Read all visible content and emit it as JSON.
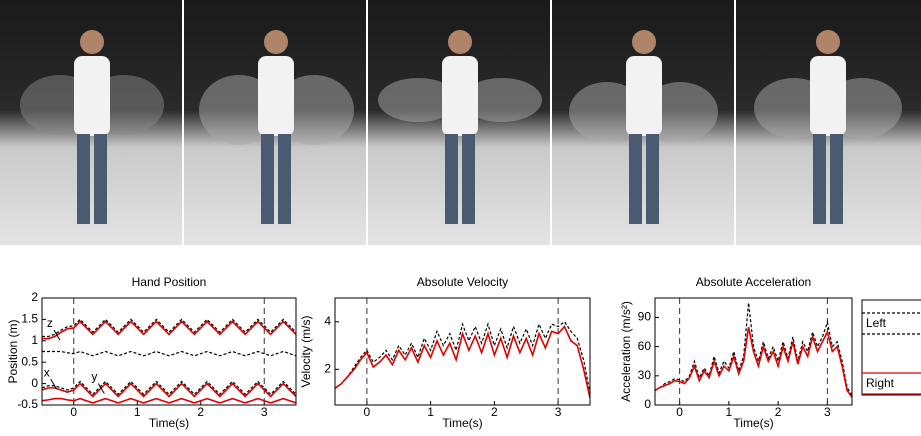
{
  "chart_data": [
    {
      "type": "line",
      "title": "Hand Position",
      "xlabel": "Time(s)",
      "ylabel": "Position (m)",
      "x": [
        -0.5,
        -0.4,
        -0.3,
        -0.2,
        -0.1,
        0,
        0.1,
        0.2,
        0.3,
        0.4,
        0.5,
        0.6,
        0.7,
        0.8,
        0.9,
        1,
        1.1,
        1.2,
        1.3,
        1.4,
        1.5,
        1.6,
        1.7,
        1.8,
        1.9,
        2,
        2.1,
        2.2,
        2.3,
        2.4,
        2.5,
        2.6,
        2.7,
        2.8,
        2.9,
        3,
        3.1,
        3.2,
        3.3,
        3.4,
        3.5
      ],
      "xlim": [
        -0.5,
        3.5
      ],
      "ylim": [
        -0.5,
        2
      ],
      "xticks": [
        0,
        1,
        2,
        3
      ],
      "yticks": [
        -0.5,
        0,
        0.5,
        1,
        1.5,
        2
      ],
      "vlines": [
        0,
        3
      ],
      "series": [
        {
          "name": "Left",
          "color": "#000000",
          "linestyle": "dashed",
          "values": [
            1.1,
            1.1,
            1.15,
            1.25,
            1.33,
            1.35,
            1.5,
            1.35,
            1.2,
            1.35,
            1.5,
            1.35,
            1.2,
            1.35,
            1.5,
            1.35,
            1.2,
            1.35,
            1.5,
            1.35,
            1.2,
            1.35,
            1.5,
            1.35,
            1.2,
            1.35,
            1.5,
            1.35,
            1.2,
            1.35,
            1.5,
            1.35,
            1.2,
            1.35,
            1.5,
            1.35,
            1.2,
            1.35,
            1.5,
            1.35,
            1.2
          ]
        },
        {
          "name": "Right",
          "color": "#e00000",
          "linestyle": "solid",
          "values": [
            1.05,
            1.05,
            1.1,
            1.2,
            1.28,
            1.3,
            1.45,
            1.3,
            1.15,
            1.3,
            1.45,
            1.3,
            1.15,
            1.3,
            1.45,
            1.3,
            1.15,
            1.3,
            1.45,
            1.3,
            1.15,
            1.3,
            1.45,
            1.3,
            1.15,
            1.3,
            1.45,
            1.3,
            1.15,
            1.3,
            1.45,
            1.3,
            1.15,
            1.3,
            1.45,
            1.3,
            1.15,
            1.3,
            1.45,
            1.3,
            1.15
          ]
        },
        {
          "name": "Left",
          "color": "#000000",
          "linestyle": "dashed",
          "values": [
            0.75,
            0.75,
            0.75,
            0.75,
            0.72,
            0.7,
            0.75,
            0.7,
            0.65,
            0.7,
            0.75,
            0.7,
            0.65,
            0.7,
            0.75,
            0.7,
            0.65,
            0.7,
            0.75,
            0.7,
            0.65,
            0.7,
            0.75,
            0.7,
            0.65,
            0.7,
            0.75,
            0.7,
            0.65,
            0.7,
            0.75,
            0.7,
            0.65,
            0.7,
            0.75,
            0.7,
            0.65,
            0.7,
            0.75,
            0.7,
            0.65
          ]
        },
        {
          "name": "Left",
          "color": "#000000",
          "linestyle": "dashed",
          "values": [
            -0.1,
            -0.05,
            -0.05,
            -0.1,
            -0.15,
            -0.1,
            0.05,
            -0.1,
            -0.25,
            -0.1,
            0.05,
            -0.1,
            -0.25,
            -0.1,
            0.05,
            -0.1,
            -0.25,
            -0.1,
            0.05,
            -0.1,
            -0.25,
            -0.1,
            0.05,
            -0.1,
            -0.25,
            -0.1,
            0.05,
            -0.1,
            -0.25,
            -0.1,
            0.05,
            -0.1,
            -0.25,
            -0.1,
            0.05,
            -0.1,
            -0.25,
            -0.1,
            0.05,
            -0.1,
            -0.25
          ]
        },
        {
          "name": "Right",
          "color": "#e00000",
          "linestyle": "solid",
          "values": [
            -0.15,
            -0.1,
            -0.1,
            -0.15,
            -0.2,
            -0.15,
            0,
            -0.15,
            -0.3,
            -0.15,
            0,
            -0.15,
            -0.3,
            -0.15,
            0,
            -0.15,
            -0.3,
            -0.15,
            0,
            -0.15,
            -0.3,
            -0.15,
            0,
            -0.15,
            -0.3,
            -0.15,
            0,
            -0.15,
            -0.3,
            -0.15,
            0,
            -0.15,
            -0.3,
            -0.15,
            0,
            -0.15,
            -0.3,
            -0.15,
            0,
            -0.15,
            -0.3
          ]
        },
        {
          "name": "Right",
          "color": "#e00000",
          "linestyle": "solid",
          "values": [
            -0.4,
            -0.38,
            -0.35,
            -0.35,
            -0.38,
            -0.4,
            -0.35,
            -0.4,
            -0.45,
            -0.4,
            -0.35,
            -0.4,
            -0.45,
            -0.4,
            -0.35,
            -0.4,
            -0.45,
            -0.4,
            -0.35,
            -0.4,
            -0.45,
            -0.4,
            -0.35,
            -0.4,
            -0.45,
            -0.4,
            -0.35,
            -0.4,
            -0.45,
            -0.4,
            -0.35,
            -0.4,
            -0.45,
            -0.4,
            -0.35,
            -0.4,
            -0.45,
            -0.4,
            -0.35,
            -0.4,
            -0.45
          ]
        }
      ],
      "annotations": [
        {
          "text": "z",
          "x": -0.25,
          "y": 1.3
        },
        {
          "text": "x",
          "x": -0.3,
          "y": 0.15
        },
        {
          "text": "y",
          "x": 0.45,
          "y": 0.05
        }
      ]
    },
    {
      "type": "line",
      "title": "Absolute Velocity",
      "xlabel": "Time(s)",
      "ylabel": "Velocity (m/s)",
      "x": [
        -0.5,
        -0.4,
        -0.3,
        -0.2,
        -0.1,
        0,
        0.1,
        0.2,
        0.3,
        0.4,
        0.5,
        0.6,
        0.7,
        0.8,
        0.9,
        1,
        1.1,
        1.2,
        1.3,
        1.4,
        1.5,
        1.6,
        1.7,
        1.8,
        1.9,
        2,
        2.1,
        2.2,
        2.3,
        2.4,
        2.5,
        2.6,
        2.7,
        2.8,
        2.9,
        3,
        3.1,
        3.2,
        3.3,
        3.4,
        3.5
      ],
      "xlim": [
        -0.5,
        3.5
      ],
      "ylim": [
        0.5,
        5
      ],
      "xticks": [
        0,
        1,
        2,
        3
      ],
      "yticks": [
        2,
        4
      ],
      "vlines": [
        0,
        3
      ],
      "series": [
        {
          "name": "Left",
          "color": "#000000",
          "linestyle": "dashed",
          "values": [
            1.2,
            1.4,
            1.7,
            2.1,
            2.5,
            2.8,
            2.3,
            2.5,
            2.8,
            2.4,
            3.0,
            2.6,
            3.1,
            2.5,
            3.3,
            2.8,
            3.6,
            3.0,
            3.5,
            2.8,
            3.9,
            3.2,
            3.8,
            3.1,
            3.9,
            3.0,
            3.7,
            2.9,
            3.8,
            3.1,
            3.7,
            3.0,
            3.9,
            3.3,
            3.9,
            3.8,
            4.0,
            3.6,
            3.3,
            2.4,
            1.0
          ]
        },
        {
          "name": "Right",
          "color": "#e00000",
          "linestyle": "solid",
          "values": [
            1.2,
            1.4,
            1.7,
            2.0,
            2.4,
            2.7,
            2.1,
            2.3,
            2.6,
            2.2,
            2.8,
            2.4,
            2.9,
            2.3,
            3.0,
            2.5,
            3.2,
            2.6,
            3.1,
            2.4,
            3.5,
            2.8,
            3.4,
            2.7,
            3.5,
            2.6,
            3.3,
            2.5,
            3.4,
            2.7,
            3.3,
            2.6,
            3.5,
            2.9,
            3.6,
            3.5,
            3.8,
            3.2,
            3.0,
            2.0,
            0.8
          ]
        }
      ]
    },
    {
      "type": "line",
      "title": "Absolute Acceleration",
      "xlabel": "Time(s)",
      "ylabel": "Acceleration (m/s²)",
      "x": [
        -0.5,
        -0.4,
        -0.3,
        -0.2,
        -0.1,
        0,
        0.1,
        0.2,
        0.3,
        0.4,
        0.5,
        0.6,
        0.7,
        0.8,
        0.9,
        1,
        1.1,
        1.2,
        1.3,
        1.4,
        1.5,
        1.6,
        1.7,
        1.8,
        1.9,
        2,
        2.1,
        2.2,
        2.3,
        2.4,
        2.5,
        2.6,
        2.7,
        2.8,
        2.9,
        3,
        3.1,
        3.2,
        3.3,
        3.4,
        3.5
      ],
      "xlim": [
        -0.5,
        3.5
      ],
      "ylim": [
        0,
        110
      ],
      "xticks": [
        0,
        1,
        2,
        3
      ],
      "yticks": [
        0,
        30,
        60,
        90
      ],
      "vlines": [
        0,
        3
      ],
      "legend": "outside-right",
      "series": [
        {
          "name": "Left",
          "color": "#000000",
          "linestyle": "dashed",
          "values": [
            15,
            18,
            22,
            24,
            27,
            26,
            24,
            30,
            45,
            28,
            38,
            30,
            50,
            33,
            45,
            38,
            55,
            35,
            50,
            105,
            60,
            45,
            65,
            48,
            60,
            45,
            65,
            48,
            70,
            45,
            65,
            55,
            75,
            60,
            70,
            85,
            60,
            65,
            45,
            18,
            10
          ]
        },
        {
          "name": "Right",
          "color": "#e00000",
          "linestyle": "solid",
          "values": [
            15,
            18,
            20,
            22,
            25,
            24,
            22,
            28,
            40,
            25,
            35,
            28,
            45,
            30,
            40,
            35,
            50,
            32,
            45,
            80,
            55,
            40,
            60,
            45,
            55,
            40,
            60,
            45,
            65,
            42,
            60,
            50,
            70,
            55,
            65,
            75,
            55,
            60,
            40,
            15,
            8
          ]
        }
      ]
    }
  ]
}
